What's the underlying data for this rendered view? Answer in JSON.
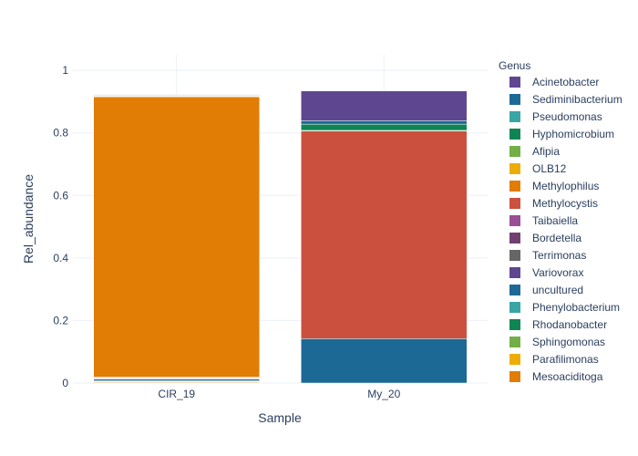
{
  "chart_data": {
    "type": "bar",
    "stacked": true,
    "title": "",
    "xlabel": "Sample",
    "ylabel": "Rel_abundance",
    "ylim": [
      0,
      1.05
    ],
    "yticks": [
      "0",
      "0.2",
      "0.4",
      "0.6",
      "0.8",
      "1"
    ],
    "ytick_values": [
      0,
      0.2,
      0.4,
      0.6,
      0.8,
      1
    ],
    "categories": [
      "CIR_19",
      "My_20"
    ],
    "grid": true,
    "legend": {
      "title": "Genus",
      "placement": "right"
    },
    "series": [
      {
        "name": "Mesoaciditoga",
        "color": "#E17C05",
        "values": [
          0.003,
          0.0
        ]
      },
      {
        "name": "Parafilimonas",
        "color": "#EDAD08",
        "values": [
          0.001,
          0.0
        ]
      },
      {
        "name": "Sphingomonas",
        "color": "#73AF48",
        "values": [
          0.001,
          0.0
        ]
      },
      {
        "name": "Rhodanobacter",
        "color": "#0F8554",
        "values": [
          0.001,
          0.0
        ]
      },
      {
        "name": "Phenylobacterium",
        "color": "#38A6A5",
        "values": [
          0.001,
          0.0
        ]
      },
      {
        "name": "uncultured",
        "color": "#1D6996",
        "values": [
          0.006,
          0.142
        ]
      },
      {
        "name": "Variovorax",
        "color": "#5F4690",
        "values": [
          0.001,
          0.0
        ]
      },
      {
        "name": "Terrimonas",
        "color": "#666666",
        "values": [
          0.001,
          0.0
        ]
      },
      {
        "name": "Bordetella",
        "color": "#6F4070",
        "values": [
          0.001,
          0.0
        ]
      },
      {
        "name": "Taibaiella",
        "color": "#994E95",
        "values": [
          0.002,
          0.0
        ]
      },
      {
        "name": "Methylocystis",
        "color": "#CC503E",
        "values": [
          0.001,
          0.664
        ]
      },
      {
        "name": "Methylophilus",
        "color": "#E17C05",
        "values": [
          0.897,
          0.0
        ]
      },
      {
        "name": "OLB12",
        "color": "#EDAD08",
        "values": [
          0.001,
          0.0
        ]
      },
      {
        "name": "Afipia",
        "color": "#73AF48",
        "values": [
          0.001,
          0.002
        ]
      },
      {
        "name": "Hyphomicrobium",
        "color": "#0F8554",
        "values": [
          0.001,
          0.02
        ]
      },
      {
        "name": "Pseudomonas",
        "color": "#38A6A5",
        "values": [
          0.001,
          0.0
        ]
      },
      {
        "name": "Sediminibacterium",
        "color": "#1D6996",
        "values": [
          0.001,
          0.011
        ]
      },
      {
        "name": "Acinetobacter",
        "color": "#5F4690",
        "values": [
          0.001,
          0.095
        ]
      }
    ],
    "extra_stack": {
      "note_values": "stack order bottom-to-top follows series order"
    }
  }
}
